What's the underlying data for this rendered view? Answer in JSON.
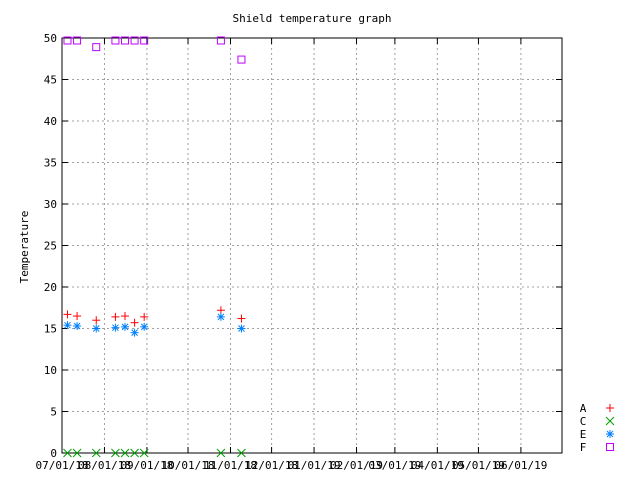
{
  "chart_data": {
    "type": "scatter",
    "title": "Shield temperature graph",
    "xlabel": "",
    "ylabel": "Temperature",
    "ylim": [
      0,
      50
    ],
    "yticks": [
      0,
      5,
      10,
      15,
      20,
      25,
      30,
      35,
      40,
      45,
      50
    ],
    "xticks": [
      "07/01/18",
      "08/01/18",
      "09/01/18",
      "10/01/18",
      "11/01/18",
      "12/01/18",
      "01/01/19",
      "02/01/19",
      "03/01/19",
      "04/01/19",
      "05/01/19",
      "06/01/19"
    ],
    "xlim": [
      "07/01/18",
      "07/01/19"
    ],
    "grid": true,
    "legend_position": "bottom-right",
    "series": [
      {
        "name": "A",
        "marker": "plus",
        "color": "#ff0000",
        "points": [
          {
            "x": "2018-07-05",
            "y": 16.7
          },
          {
            "x": "2018-07-12",
            "y": 16.5
          },
          {
            "x": "2018-07-26",
            "y": 16.0
          },
          {
            "x": "2018-08-09",
            "y": 16.4
          },
          {
            "x": "2018-08-16",
            "y": 16.5
          },
          {
            "x": "2018-08-23",
            "y": 15.7
          },
          {
            "x": "2018-08-30",
            "y": 16.4
          },
          {
            "x": "2018-10-25",
            "y": 17.2
          },
          {
            "x": "2018-11-09",
            "y": 16.2
          }
        ]
      },
      {
        "name": "C",
        "marker": "cross",
        "color": "#00a000",
        "points": [
          {
            "x": "2018-07-05",
            "y": 0
          },
          {
            "x": "2018-07-12",
            "y": 0
          },
          {
            "x": "2018-07-26",
            "y": 0
          },
          {
            "x": "2018-08-09",
            "y": 0
          },
          {
            "x": "2018-08-16",
            "y": 0
          },
          {
            "x": "2018-08-23",
            "y": 0
          },
          {
            "x": "2018-08-30",
            "y": 0
          },
          {
            "x": "2018-10-25",
            "y": 0
          },
          {
            "x": "2018-11-09",
            "y": 0
          }
        ]
      },
      {
        "name": "E",
        "marker": "star",
        "color": "#0080ff",
        "points": [
          {
            "x": "2018-07-05",
            "y": 15.4
          },
          {
            "x": "2018-07-12",
            "y": 15.3
          },
          {
            "x": "2018-07-26",
            "y": 15.0
          },
          {
            "x": "2018-08-09",
            "y": 15.1
          },
          {
            "x": "2018-08-16",
            "y": 15.2
          },
          {
            "x": "2018-08-23",
            "y": 14.5
          },
          {
            "x": "2018-08-30",
            "y": 15.2
          },
          {
            "x": "2018-10-25",
            "y": 16.4
          },
          {
            "x": "2018-11-09",
            "y": 15.0
          }
        ]
      },
      {
        "name": "F",
        "marker": "square",
        "color": "#c000ff",
        "points": [
          {
            "x": "2018-07-05",
            "y": 49.7
          },
          {
            "x": "2018-07-12",
            "y": 49.7
          },
          {
            "x": "2018-07-26",
            "y": 48.9
          },
          {
            "x": "2018-08-09",
            "y": 49.7
          },
          {
            "x": "2018-08-16",
            "y": 49.7
          },
          {
            "x": "2018-08-23",
            "y": 49.7
          },
          {
            "x": "2018-08-30",
            "y": 49.7
          },
          {
            "x": "2018-10-25",
            "y": 49.7
          },
          {
            "x": "2018-11-09",
            "y": 47.4
          }
        ]
      }
    ]
  }
}
